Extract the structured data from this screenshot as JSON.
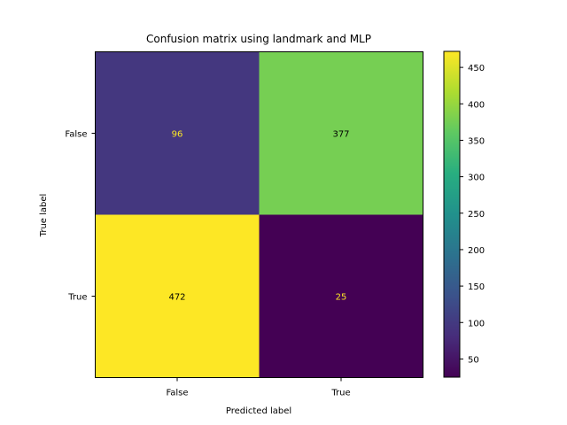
{
  "chart_data": {
    "type": "heatmap",
    "title": "Confusion matrix using landmark and MLP",
    "xlabel": "Predicted label",
    "ylabel": "True label",
    "x_categories": [
      "False",
      "True"
    ],
    "y_categories": [
      "False",
      "True"
    ],
    "values": [
      [
        96,
        377
      ],
      [
        472,
        25
      ]
    ],
    "colormap": "viridis",
    "colorbar": {
      "range": [
        25,
        472
      ],
      "ticks": [
        50,
        100,
        150,
        200,
        250,
        300,
        350,
        400,
        450
      ]
    },
    "text_colors": {
      "on_dark": "#fde725",
      "on_light": "#000000"
    }
  }
}
